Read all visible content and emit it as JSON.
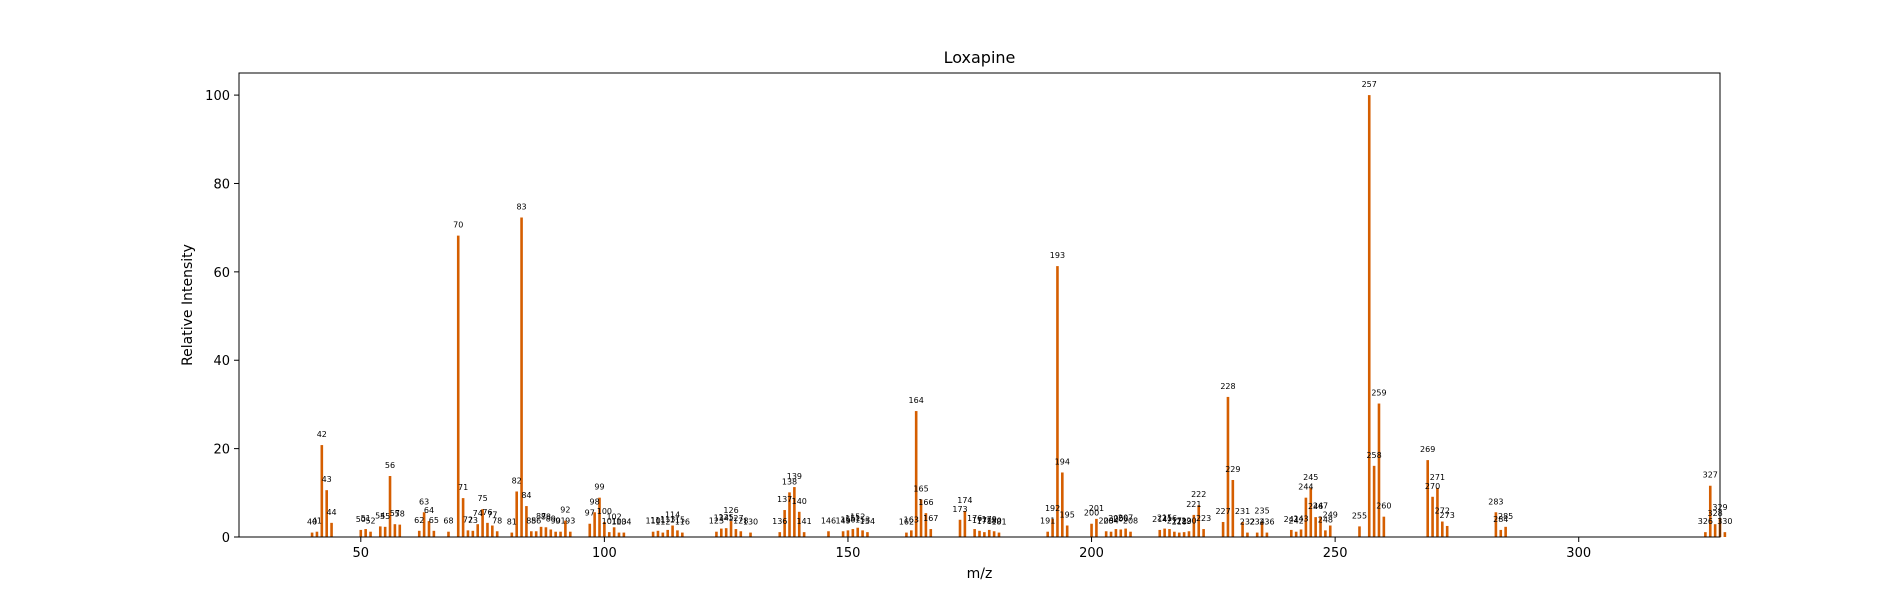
{
  "chart_data": {
    "type": "bar",
    "title": "Loxapine",
    "xlabel": "m/z",
    "ylabel": "Relative Intensity",
    "xlim": [
      25,
      329
    ],
    "ylim": [
      0,
      105
    ],
    "xticks": [
      50,
      100,
      150,
      200,
      250,
      300
    ],
    "yticks": [
      0,
      20,
      40,
      60,
      80,
      100
    ],
    "bar_color": "#d55e00",
    "grid": false,
    "peaks": [
      {
        "mz": 40,
        "intensity": 1.0,
        "label": "40"
      },
      {
        "mz": 41,
        "intensity": 1.2,
        "label": "41"
      },
      {
        "mz": 42,
        "intensity": 20.8,
        "label": "42"
      },
      {
        "mz": 43,
        "intensity": 10.6,
        "label": "43"
      },
      {
        "mz": 44,
        "intensity": 3.2,
        "label": "44"
      },
      {
        "mz": 50,
        "intensity": 1.6,
        "label": "50"
      },
      {
        "mz": 51,
        "intensity": 1.8,
        "label": "51"
      },
      {
        "mz": 52,
        "intensity": 1.2,
        "label": "52"
      },
      {
        "mz": 54,
        "intensity": 2.4,
        "label": "54"
      },
      {
        "mz": 55,
        "intensity": 2.3,
        "label": "55"
      },
      {
        "mz": 56,
        "intensity": 13.8,
        "label": "56"
      },
      {
        "mz": 57,
        "intensity": 2.9,
        "label": "57"
      },
      {
        "mz": 58,
        "intensity": 2.8,
        "label": "58"
      },
      {
        "mz": 62,
        "intensity": 1.4,
        "label": "62"
      },
      {
        "mz": 63,
        "intensity": 5.6,
        "label": "63"
      },
      {
        "mz": 64,
        "intensity": 3.6,
        "label": "64"
      },
      {
        "mz": 65,
        "intensity": 1.4,
        "label": "65"
      },
      {
        "mz": 68,
        "intensity": 1.2,
        "label": "68"
      },
      {
        "mz": 70,
        "intensity": 68.2,
        "label": "70"
      },
      {
        "mz": 71,
        "intensity": 8.8,
        "label": "71"
      },
      {
        "mz": 72,
        "intensity": 1.5,
        "label": "72"
      },
      {
        "mz": 73,
        "intensity": 1.4,
        "label": "73"
      },
      {
        "mz": 74,
        "intensity": 2.9,
        "label": "74"
      },
      {
        "mz": 75,
        "intensity": 6.3,
        "label": "75"
      },
      {
        "mz": 76,
        "intensity": 3.2,
        "label": "76"
      },
      {
        "mz": 77,
        "intensity": 2.6,
        "label": "77"
      },
      {
        "mz": 78,
        "intensity": 1.3,
        "label": "78"
      },
      {
        "mz": 81,
        "intensity": 1.0,
        "label": "81"
      },
      {
        "mz": 82,
        "intensity": 10.3,
        "label": "82"
      },
      {
        "mz": 83,
        "intensity": 72.3,
        "label": "83"
      },
      {
        "mz": 84,
        "intensity": 7.0,
        "label": "84"
      },
      {
        "mz": 85,
        "intensity": 1.3,
        "label": "85"
      },
      {
        "mz": 86,
        "intensity": 1.3,
        "label": "86"
      },
      {
        "mz": 87,
        "intensity": 2.3,
        "label": "87"
      },
      {
        "mz": 88,
        "intensity": 2.2,
        "label": "88"
      },
      {
        "mz": 89,
        "intensity": 1.7,
        "label": "89"
      },
      {
        "mz": 90,
        "intensity": 1.2,
        "label": "90"
      },
      {
        "mz": 91,
        "intensity": 1.2,
        "label": "91"
      },
      {
        "mz": 92,
        "intensity": 3.7,
        "label": "92"
      },
      {
        "mz": 93,
        "intensity": 1.2,
        "label": "93"
      },
      {
        "mz": 97,
        "intensity": 3.0,
        "label": "97"
      },
      {
        "mz": 98,
        "intensity": 5.6,
        "label": "98"
      },
      {
        "mz": 99,
        "intensity": 8.9,
        "label": "99"
      },
      {
        "mz": 100,
        "intensity": 3.4,
        "label": "100"
      },
      {
        "mz": 101,
        "intensity": 1.1,
        "label": "101"
      },
      {
        "mz": 102,
        "intensity": 2.2,
        "label": "102"
      },
      {
        "mz": 103,
        "intensity": 1.0,
        "label": "103"
      },
      {
        "mz": 104,
        "intensity": 1.0,
        "label": "104"
      },
      {
        "mz": 110,
        "intensity": 1.2,
        "label": "110"
      },
      {
        "mz": 111,
        "intensity": 1.4,
        "label": "111"
      },
      {
        "mz": 112,
        "intensity": 1.0,
        "label": "112"
      },
      {
        "mz": 113,
        "intensity": 1.6,
        "label": "113"
      },
      {
        "mz": 114,
        "intensity": 2.6,
        "label": "114"
      },
      {
        "mz": 115,
        "intensity": 1.5,
        "label": "115"
      },
      {
        "mz": 116,
        "intensity": 1.0,
        "label": "116"
      },
      {
        "mz": 123,
        "intensity": 1.2,
        "label": "123"
      },
      {
        "mz": 124,
        "intensity": 1.9,
        "label": "124"
      },
      {
        "mz": 125,
        "intensity": 2.0,
        "label": "125"
      },
      {
        "mz": 126,
        "intensity": 3.6,
        "label": "126"
      },
      {
        "mz": 127,
        "intensity": 1.8,
        "label": "127"
      },
      {
        "mz": 128,
        "intensity": 1.3,
        "label": "128"
      },
      {
        "mz": 130,
        "intensity": 1.0,
        "label": "130"
      },
      {
        "mz": 136,
        "intensity": 1.1,
        "label": "136"
      },
      {
        "mz": 137,
        "intensity": 6.1,
        "label": "137"
      },
      {
        "mz": 138,
        "intensity": 10.1,
        "label": "138"
      },
      {
        "mz": 139,
        "intensity": 11.3,
        "label": "139"
      },
      {
        "mz": 140,
        "intensity": 5.7,
        "label": "140"
      },
      {
        "mz": 141,
        "intensity": 1.1,
        "label": "141"
      },
      {
        "mz": 146,
        "intensity": 1.3,
        "label": "146"
      },
      {
        "mz": 149,
        "intensity": 1.3,
        "label": "149"
      },
      {
        "mz": 150,
        "intensity": 1.5,
        "label": "150"
      },
      {
        "mz": 151,
        "intensity": 1.8,
        "label": "151"
      },
      {
        "mz": 152,
        "intensity": 2.1,
        "label": "152"
      },
      {
        "mz": 153,
        "intensity": 1.5,
        "label": "153"
      },
      {
        "mz": 154,
        "intensity": 1.1,
        "label": "154"
      },
      {
        "mz": 162,
        "intensity": 1.0,
        "label": "162"
      },
      {
        "mz": 163,
        "intensity": 1.5,
        "label": "163"
      },
      {
        "mz": 164,
        "intensity": 28.5,
        "label": "164"
      },
      {
        "mz": 165,
        "intensity": 8.5,
        "label": "165"
      },
      {
        "mz": 166,
        "intensity": 5.4,
        "label": "166"
      },
      {
        "mz": 167,
        "intensity": 1.8,
        "label": "167"
      },
      {
        "mz": 173,
        "intensity": 3.9,
        "label": "173"
      },
      {
        "mz": 174,
        "intensity": 5.9,
        "label": "174"
      },
      {
        "mz": 176,
        "intensity": 1.8,
        "label": "176"
      },
      {
        "mz": 177,
        "intensity": 1.4,
        "label": "177"
      },
      {
        "mz": 178,
        "intensity": 1.1,
        "label": "178"
      },
      {
        "mz": 179,
        "intensity": 1.6,
        "label": "179"
      },
      {
        "mz": 180,
        "intensity": 1.3,
        "label": "180"
      },
      {
        "mz": 181,
        "intensity": 1.0,
        "label": "181"
      },
      {
        "mz": 191,
        "intensity": 1.2,
        "label": "191"
      },
      {
        "mz": 192,
        "intensity": 4.1,
        "label": "192"
      },
      {
        "mz": 193,
        "intensity": 61.3,
        "label": "193"
      },
      {
        "mz": 194,
        "intensity": 14.6,
        "label": "194"
      },
      {
        "mz": 195,
        "intensity": 2.6,
        "label": "195"
      },
      {
        "mz": 200,
        "intensity": 3.0,
        "label": "200"
      },
      {
        "mz": 201,
        "intensity": 4.1,
        "label": "201"
      },
      {
        "mz": 203,
        "intensity": 1.3,
        "label": "203"
      },
      {
        "mz": 204,
        "intensity": 1.2,
        "label": "204"
      },
      {
        "mz": 205,
        "intensity": 1.8,
        "label": "205"
      },
      {
        "mz": 206,
        "intensity": 1.7,
        "label": "206"
      },
      {
        "mz": 207,
        "intensity": 1.9,
        "label": "207"
      },
      {
        "mz": 208,
        "intensity": 1.2,
        "label": "208"
      },
      {
        "mz": 214,
        "intensity": 1.6,
        "label": "214"
      },
      {
        "mz": 215,
        "intensity": 1.9,
        "label": "215"
      },
      {
        "mz": 216,
        "intensity": 1.8,
        "label": "216"
      },
      {
        "mz": 217,
        "intensity": 1.2,
        "label": "217"
      },
      {
        "mz": 218,
        "intensity": 1.0,
        "label": "218"
      },
      {
        "mz": 219,
        "intensity": 1.1,
        "label": "219"
      },
      {
        "mz": 220,
        "intensity": 1.3,
        "label": "220"
      },
      {
        "mz": 221,
        "intensity": 5.0,
        "label": "221"
      },
      {
        "mz": 222,
        "intensity": 7.2,
        "label": "222"
      },
      {
        "mz": 223,
        "intensity": 1.8,
        "label": "223"
      },
      {
        "mz": 227,
        "intensity": 3.4,
        "label": "227"
      },
      {
        "mz": 228,
        "intensity": 31.7,
        "label": "228"
      },
      {
        "mz": 229,
        "intensity": 12.9,
        "label": "229"
      },
      {
        "mz": 231,
        "intensity": 3.4,
        "label": "231"
      },
      {
        "mz": 232,
        "intensity": 1.0,
        "label": "232"
      },
      {
        "mz": 234,
        "intensity": 1.0,
        "label": "234"
      },
      {
        "mz": 235,
        "intensity": 3.5,
        "label": "235"
      },
      {
        "mz": 236,
        "intensity": 1.0,
        "label": "236"
      },
      {
        "mz": 241,
        "intensity": 1.6,
        "label": "241"
      },
      {
        "mz": 242,
        "intensity": 1.2,
        "label": "242"
      },
      {
        "mz": 243,
        "intensity": 1.7,
        "label": "243"
      },
      {
        "mz": 244,
        "intensity": 8.9,
        "label": "244"
      },
      {
        "mz": 245,
        "intensity": 11.1,
        "label": "245"
      },
      {
        "mz": 246,
        "intensity": 4.5,
        "label": "246"
      },
      {
        "mz": 247,
        "intensity": 4.6,
        "label": "247"
      },
      {
        "mz": 248,
        "intensity": 1.5,
        "label": "248"
      },
      {
        "mz": 249,
        "intensity": 2.6,
        "label": "249"
      },
      {
        "mz": 255,
        "intensity": 2.4,
        "label": "255"
      },
      {
        "mz": 257,
        "intensity": 100.0,
        "label": "257"
      },
      {
        "mz": 258,
        "intensity": 16.1,
        "label": "258"
      },
      {
        "mz": 259,
        "intensity": 30.2,
        "label": "259"
      },
      {
        "mz": 260,
        "intensity": 4.6,
        "label": "260"
      },
      {
        "mz": 269,
        "intensity": 17.4,
        "label": "269"
      },
      {
        "mz": 270,
        "intensity": 9.1,
        "label": "270"
      },
      {
        "mz": 271,
        "intensity": 11.1,
        "label": "271"
      },
      {
        "mz": 272,
        "intensity": 3.5,
        "label": "272"
      },
      {
        "mz": 273,
        "intensity": 2.5,
        "label": "273"
      },
      {
        "mz": 283,
        "intensity": 5.6,
        "label": "283"
      },
      {
        "mz": 284,
        "intensity": 1.6,
        "label": "284"
      },
      {
        "mz": 285,
        "intensity": 2.3,
        "label": "285"
      },
      {
        "mz": 326,
        "intensity": 1.1,
        "label": "326"
      },
      {
        "mz": 327,
        "intensity": 11.6,
        "label": "327"
      },
      {
        "mz": 328,
        "intensity": 2.9,
        "label": "328"
      },
      {
        "mz": 329,
        "intensity": 4.3,
        "label": "329"
      },
      {
        "mz": 330,
        "intensity": 1.1,
        "label": "330"
      }
    ]
  }
}
